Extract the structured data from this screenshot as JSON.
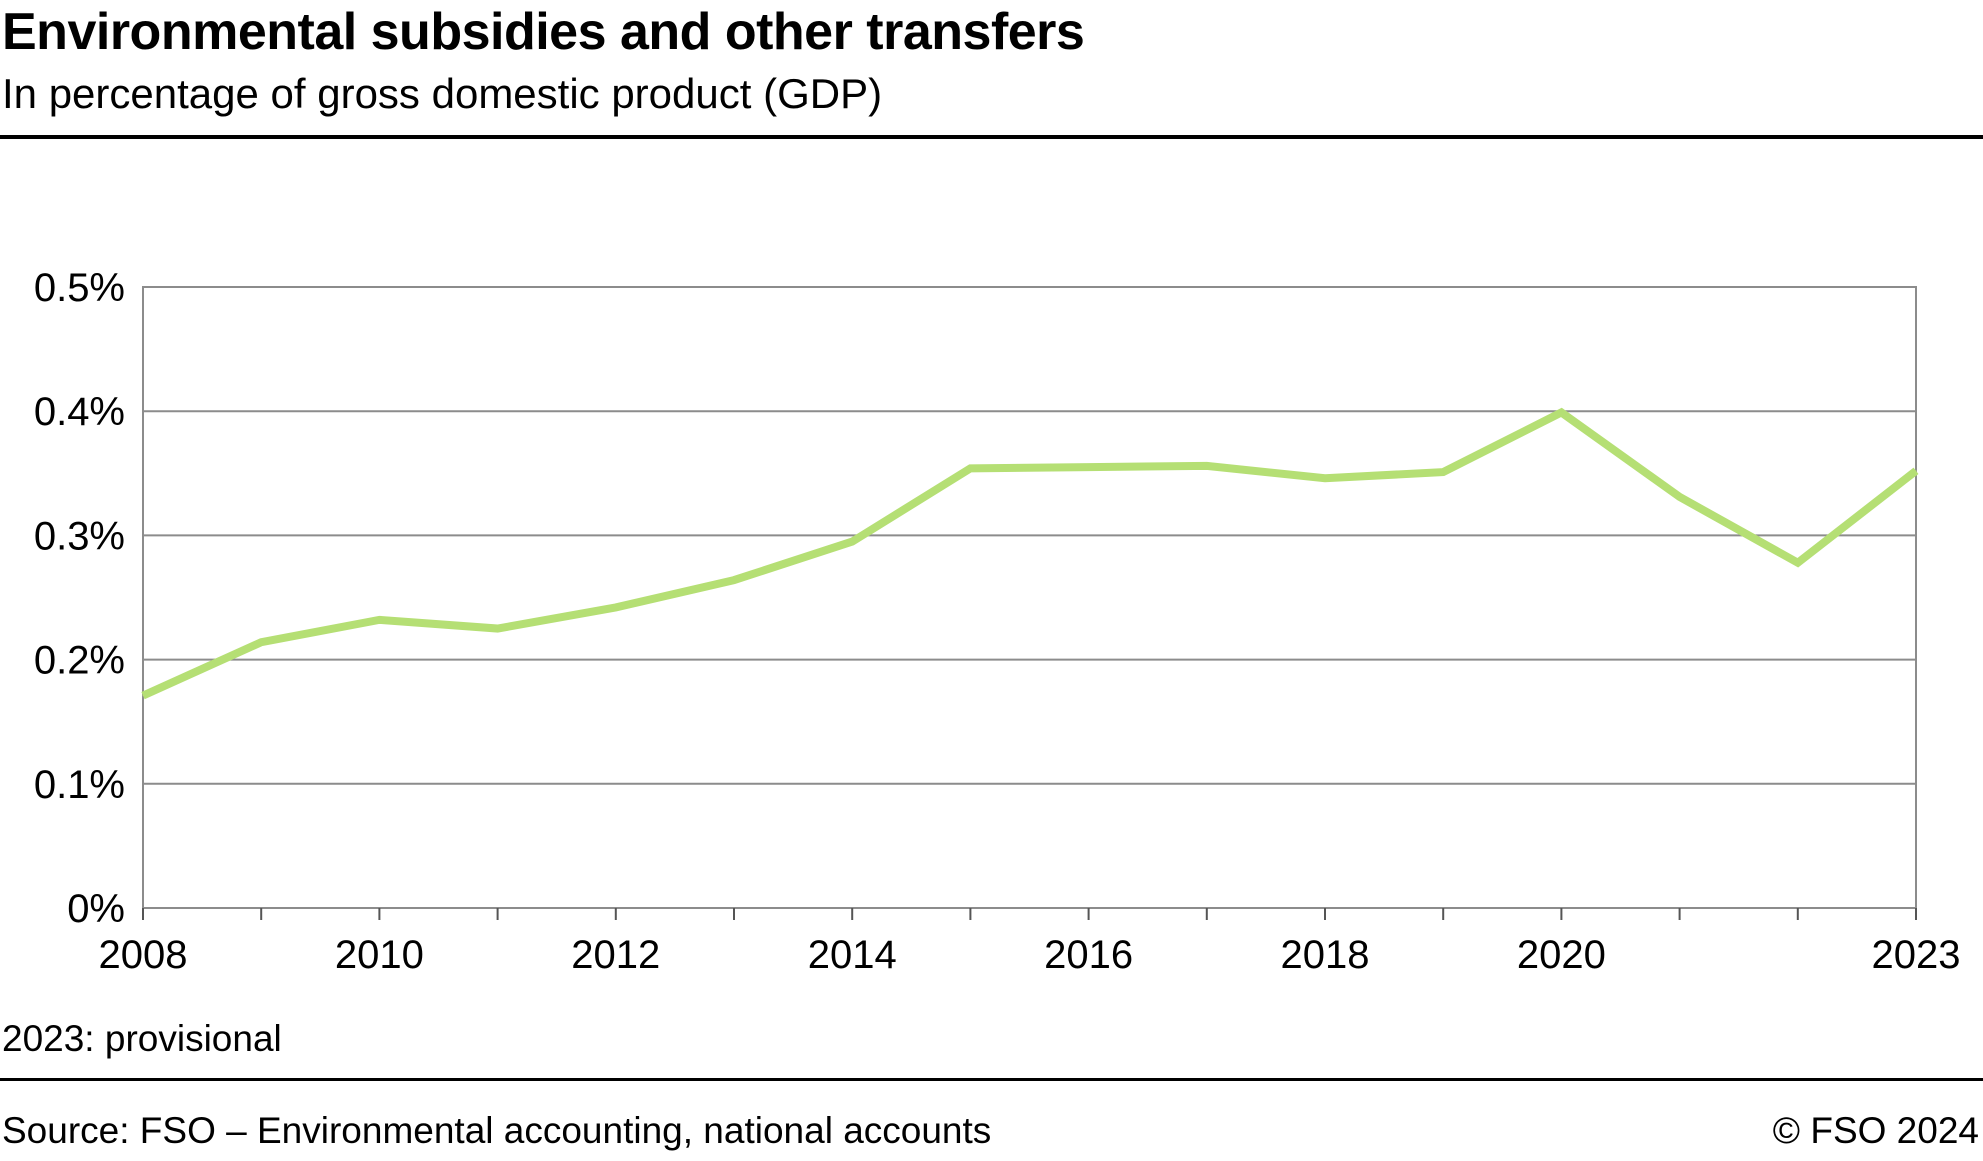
{
  "header": {
    "title": "Environmental subsidies and other transfers",
    "subtitle": "In percentage of gross domestic product (GDP)"
  },
  "footer": {
    "note": "2023: provisional",
    "source": "Source: FSO – Environmental accounting, national accounts",
    "copyright": "© FSO 2024"
  },
  "chart_data": {
    "type": "line",
    "title": "Environmental subsidies and other transfers",
    "subtitle": "In percentage of gross domestic product (GDP)",
    "xlabel": "",
    "ylabel": "",
    "x": [
      2008,
      2009,
      2010,
      2011,
      2012,
      2013,
      2014,
      2015,
      2016,
      2017,
      2018,
      2019,
      2020,
      2021,
      2022,
      2023
    ],
    "x_tick_labels": [
      "2008",
      "2010",
      "2012",
      "2014",
      "2016",
      "2018",
      "2020",
      "2023"
    ],
    "x_tick_values": [
      2008,
      2010,
      2012,
      2014,
      2016,
      2018,
      2020,
      2023
    ],
    "y_tick_values": [
      0,
      0.1,
      0.2,
      0.3,
      0.4,
      0.5
    ],
    "y_tick_labels": [
      "0%",
      "0.1%",
      "0.2%",
      "0.3%",
      "0.4%",
      "0.5%"
    ],
    "xlim": [
      2008,
      2023
    ],
    "ylim": [
      0,
      0.5
    ],
    "grid": true,
    "series": [
      {
        "color": "#b5df74",
        "values": [
          0.171,
          0.214,
          0.232,
          0.225,
          0.242,
          0.264,
          0.295,
          0.354,
          0.355,
          0.356,
          0.346,
          0.351,
          0.399,
          0.331,
          0.278,
          0.352
        ]
      }
    ]
  }
}
